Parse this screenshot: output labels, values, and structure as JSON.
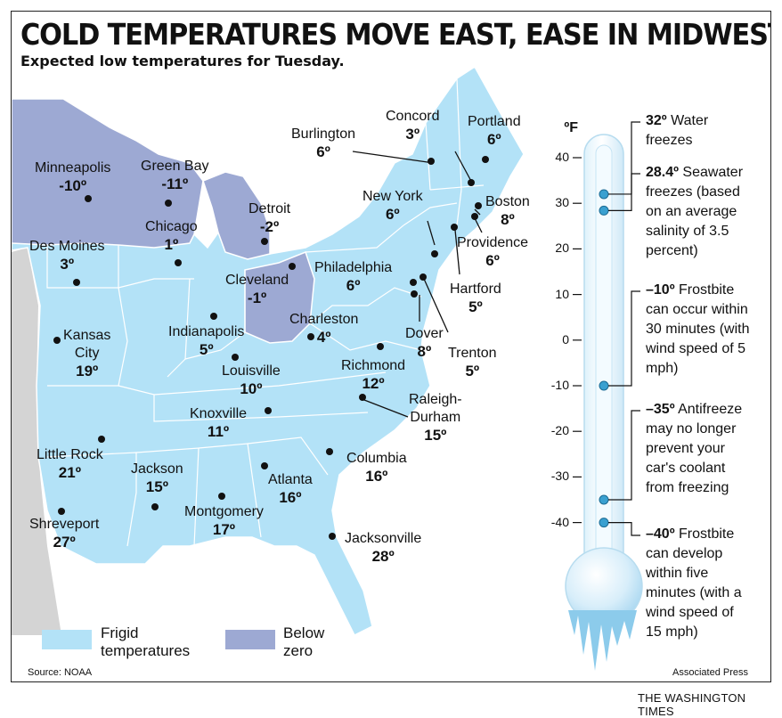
{
  "title": "COLD TEMPERATURES MOVE EAST, EASE IN MIDWEST",
  "subtitle": "Expected low temperatures for Tuesday.",
  "cities": [
    {
      "name": "Minneapolis",
      "temp": "-10º"
    },
    {
      "name": "Green Bay",
      "temp": "-11º"
    },
    {
      "name": "Chicago",
      "temp": "1º"
    },
    {
      "name": "Detroit",
      "temp": "-2º"
    },
    {
      "name": "Des Moines",
      "temp": "3º"
    },
    {
      "name": "Cleveland",
      "temp": "-1º"
    },
    {
      "name": "Indianapolis",
      "temp": "5º"
    },
    {
      "name": "Kansas City",
      "name_line1": "Kansas",
      "name_line2": "City",
      "temp": "19º"
    },
    {
      "name": "Louisville",
      "temp": "10º"
    },
    {
      "name": "Charleston",
      "temp": "4º"
    },
    {
      "name": "Knoxville",
      "temp": "11º"
    },
    {
      "name": "Little Rock",
      "temp": "21º"
    },
    {
      "name": "Jackson",
      "temp": "15º"
    },
    {
      "name": "Montgomery",
      "temp": "17º"
    },
    {
      "name": "Atlanta",
      "temp": "16º"
    },
    {
      "name": "Shreveport",
      "temp": "27º"
    },
    {
      "name": "Jacksonville",
      "temp": "28º"
    },
    {
      "name": "Columbia",
      "temp": "16º"
    },
    {
      "name": "Raleigh-Durham",
      "name_line1": "Raleigh-",
      "name_line2": "Durham",
      "temp": "15º"
    },
    {
      "name": "Richmond",
      "temp": "12º"
    },
    {
      "name": "Dover",
      "temp": "8º"
    },
    {
      "name": "Trenton",
      "temp": "5º"
    },
    {
      "name": "Philadelphia",
      "temp": "6º"
    },
    {
      "name": "New York",
      "temp": "6º"
    },
    {
      "name": "Hartford",
      "temp": "5º"
    },
    {
      "name": "Providence",
      "temp": "6º"
    },
    {
      "name": "Boston",
      "temp": "8º"
    },
    {
      "name": "Portland",
      "temp": "6º"
    },
    {
      "name": "Concord",
      "temp": "3º"
    },
    {
      "name": "Burlington",
      "temp": "6º"
    }
  ],
  "legend": {
    "frigid": {
      "label_line1": "Frigid",
      "label_line2": "temperatures",
      "color": "#b3e2f7"
    },
    "below_zero": {
      "label_line1": "Below",
      "label_line2": "zero",
      "color": "#9da9d3"
    }
  },
  "thermometer": {
    "unit": "ºF",
    "ticks": [
      "40",
      "30",
      "20",
      "10",
      "0",
      "-10",
      "-20",
      "-30",
      "-40"
    ],
    "annotations": [
      {
        "value": 32,
        "bold": "32º",
        "text_lines": [
          " Water",
          "freezes"
        ]
      },
      {
        "value": 28.4,
        "bold": "28.4º",
        "text_lines": [
          " Seawater",
          "freezes (based",
          "on an average",
          "salinity of 3.5",
          "percent)"
        ]
      },
      {
        "value": -10,
        "bold": "–10º",
        "text_lines": [
          " Frostbite",
          "can occur within",
          "30 minutes (with",
          "wind speed of 5",
          "mph)"
        ]
      },
      {
        "value": -35,
        "bold": "–35º",
        "text_lines": [
          " Antifreeze",
          "may no longer",
          "prevent your",
          "car's coolant",
          "from freezing"
        ]
      },
      {
        "value": -40,
        "bold": "–40º",
        "text_lines": [
          " Frostbite",
          "can develop",
          "within five",
          "minutes (with a",
          "wind speed of",
          "15 mph)"
        ]
      }
    ]
  },
  "source_text": "Source: NOAA",
  "credit_ap": "Associated Press",
  "credit_paper": "THE WASHINGTON TIMES",
  "colors": {
    "land": "#b3e2f7",
    "below_zero": "#9da9d3",
    "gray_land": "#d4d4d4",
    "thermometer_dot": "#3aa0d0"
  }
}
